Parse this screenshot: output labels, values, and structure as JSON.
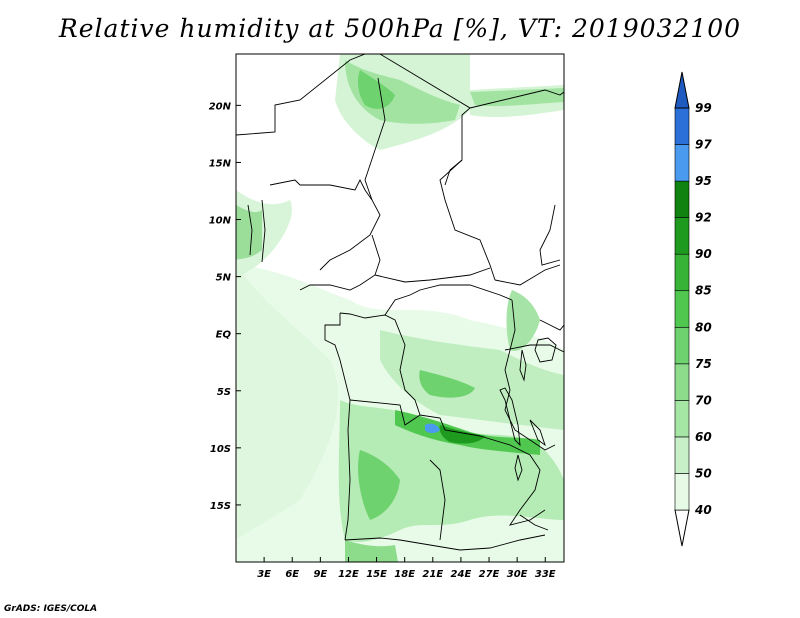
{
  "title": "Relative humidity at 500hPa [%], VT: 2019032100",
  "footer": "GrADS: IGES/COLA",
  "map": {
    "lat_labels": [
      "20N",
      "15N",
      "10N",
      "5N",
      "EQ",
      "5S",
      "10S",
      "15S"
    ],
    "lat_values": [
      20,
      15,
      10,
      5,
      0,
      -5,
      -10,
      -15
    ],
    "lon_labels": [
      "3E",
      "6E",
      "9E",
      "12E",
      "15E",
      "18E",
      "21E",
      "24E",
      "27E",
      "30E",
      "33E"
    ],
    "lon_values": [
      3,
      6,
      9,
      12,
      15,
      18,
      21,
      24,
      27,
      30,
      33
    ],
    "lon_range": [
      0,
      35
    ],
    "lat_range": [
      -20,
      24.5
    ]
  },
  "colorbar": {
    "levels": [
      "40",
      "50",
      "60",
      "70",
      "75",
      "80",
      "85",
      "90",
      "92",
      "95",
      "97",
      "99"
    ],
    "colors": [
      "#ffffff",
      "#e6fae6",
      "#c8f0c8",
      "#a5e6a5",
      "#8cdc8c",
      "#6ed26e",
      "#50c850",
      "#37b437",
      "#1e9b1e",
      "#0f820f",
      "#4a9bef",
      "#2a70d8",
      "#1f5ac0"
    ]
  },
  "icons": {
    "map": "humidity-field-map",
    "colorbar": "colorbar-arrow"
  }
}
